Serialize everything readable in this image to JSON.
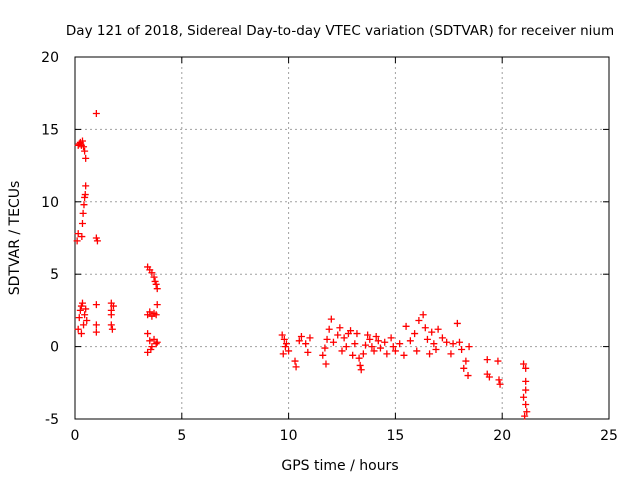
{
  "chart_data": {
    "type": "scatter",
    "title": "Day 121 of 2018, Sidereal Day-to-day VTEC variation (SDTVAR) for receiver nium",
    "xlabel": "GPS time / hours",
    "ylabel": "SDTVAR / TECUs",
    "xlim": [
      0,
      25
    ],
    "ylim": [
      -5,
      20
    ],
    "xticks": [
      "0",
      "5",
      "10",
      "15",
      "20",
      "25"
    ],
    "yticks": [
      "-5",
      "0",
      "5",
      "10",
      "15",
      "20"
    ],
    "grid": true,
    "marker": "+",
    "color": "#ff0000",
    "series": [
      {
        "name": "SDTVAR",
        "points": [
          [
            0.1,
            7.3
          ],
          [
            0.15,
            7.8
          ],
          [
            0.15,
            13.9
          ],
          [
            0.2,
            14.0
          ],
          [
            0.25,
            14.1
          ],
          [
            0.3,
            13.9
          ],
          [
            0.35,
            14.2
          ],
          [
            0.4,
            13.8
          ],
          [
            0.45,
            13.5
          ],
          [
            0.5,
            13.0
          ],
          [
            0.2,
            2.0
          ],
          [
            0.25,
            2.5
          ],
          [
            0.3,
            2.8
          ],
          [
            0.35,
            3.0
          ],
          [
            0.4,
            1.5
          ],
          [
            0.45,
            2.2
          ],
          [
            0.3,
            0.9
          ],
          [
            0.5,
            2.6
          ],
          [
            0.55,
            1.8
          ],
          [
            0.15,
            1.2
          ],
          [
            0.35,
            8.5
          ],
          [
            0.38,
            9.2
          ],
          [
            0.42,
            9.8
          ],
          [
            0.45,
            10.3
          ],
          [
            0.48,
            10.5
          ],
          [
            0.5,
            11.1
          ],
          [
            0.32,
            7.6
          ],
          [
            1.0,
            16.1
          ],
          [
            1.0,
            7.5
          ],
          [
            1.05,
            7.3
          ],
          [
            1.0,
            2.9
          ],
          [
            1.0,
            1.5
          ],
          [
            1.0,
            1.0
          ],
          [
            1.7,
            3.0
          ],
          [
            1.7,
            2.5
          ],
          [
            1.7,
            2.2
          ],
          [
            1.7,
            1.5
          ],
          [
            1.75,
            1.2
          ],
          [
            1.8,
            2.8
          ],
          [
            3.4,
            5.5
          ],
          [
            3.5,
            5.3
          ],
          [
            3.6,
            5.1
          ],
          [
            3.7,
            4.8
          ],
          [
            3.8,
            4.3
          ],
          [
            3.85,
            4.0
          ],
          [
            3.75,
            4.5
          ],
          [
            3.4,
            2.2
          ],
          [
            3.5,
            2.4
          ],
          [
            3.6,
            2.1
          ],
          [
            3.7,
            2.3
          ],
          [
            3.8,
            2.2
          ],
          [
            3.85,
            2.9
          ],
          [
            3.4,
            0.9
          ],
          [
            3.5,
            0.4
          ],
          [
            3.6,
            0.0
          ],
          [
            3.7,
            0.5
          ],
          [
            3.8,
            0.2
          ],
          [
            3.4,
            -0.4
          ],
          [
            3.55,
            -0.2
          ],
          [
            3.85,
            0.3
          ],
          [
            9.7,
            0.8
          ],
          [
            9.8,
            0.5
          ],
          [
            9.9,
            0.2
          ],
          [
            10.0,
            -0.3
          ],
          [
            9.75,
            -0.5
          ],
          [
            9.85,
            0.0
          ],
          [
            10.3,
            -1.0
          ],
          [
            10.35,
            -1.4
          ],
          [
            10.5,
            0.4
          ],
          [
            10.6,
            0.7
          ],
          [
            10.8,
            0.2
          ],
          [
            11.0,
            0.6
          ],
          [
            10.9,
            -0.4
          ],
          [
            11.6,
            -0.6
          ],
          [
            11.7,
            -0.1
          ],
          [
            11.8,
            0.5
          ],
          [
            11.9,
            1.2
          ],
          [
            12.0,
            1.9
          ],
          [
            11.75,
            -1.2
          ],
          [
            12.1,
            0.3
          ],
          [
            12.3,
            0.8
          ],
          [
            12.4,
            1.3
          ],
          [
            12.5,
            -0.3
          ],
          [
            12.6,
            0.6
          ],
          [
            12.7,
            0.0
          ],
          [
            12.8,
            0.9
          ],
          [
            12.9,
            1.1
          ],
          [
            13.0,
            -0.6
          ],
          [
            13.1,
            0.2
          ],
          [
            13.2,
            0.9
          ],
          [
            13.3,
            -0.8
          ],
          [
            13.35,
            -1.3
          ],
          [
            13.4,
            -1.6
          ],
          [
            13.5,
            -0.5
          ],
          [
            13.6,
            0.1
          ],
          [
            13.7,
            0.8
          ],
          [
            13.8,
            0.5
          ],
          [
            13.9,
            0.0
          ],
          [
            14.0,
            -0.3
          ],
          [
            14.1,
            0.7
          ],
          [
            14.2,
            0.4
          ],
          [
            14.3,
            -0.1
          ],
          [
            14.5,
            0.3
          ],
          [
            14.6,
            -0.5
          ],
          [
            14.8,
            0.6
          ],
          [
            14.9,
            0.0
          ],
          [
            15.0,
            -0.3
          ],
          [
            15.2,
            0.2
          ],
          [
            15.4,
            -0.6
          ],
          [
            15.5,
            1.4
          ],
          [
            15.7,
            0.4
          ],
          [
            15.9,
            0.9
          ],
          [
            16.0,
            -0.3
          ],
          [
            16.1,
            1.8
          ],
          [
            16.3,
            2.2
          ],
          [
            16.4,
            1.3
          ],
          [
            16.5,
            0.5
          ],
          [
            16.6,
            -0.5
          ],
          [
            16.7,
            1.0
          ],
          [
            16.8,
            0.2
          ],
          [
            16.9,
            -0.2
          ],
          [
            17.0,
            1.2
          ],
          [
            17.2,
            0.6
          ],
          [
            17.4,
            0.3
          ],
          [
            17.6,
            -0.5
          ],
          [
            17.7,
            0.2
          ],
          [
            17.9,
            1.6
          ],
          [
            18.0,
            0.3
          ],
          [
            18.1,
            -0.2
          ],
          [
            18.2,
            -1.5
          ],
          [
            18.3,
            -1.0
          ],
          [
            18.4,
            -2.0
          ],
          [
            18.45,
            0.0
          ],
          [
            19.3,
            -0.9
          ],
          [
            19.3,
            -1.9
          ],
          [
            19.4,
            -2.1
          ],
          [
            19.8,
            -1.0
          ],
          [
            19.85,
            -2.3
          ],
          [
            19.9,
            -2.6
          ],
          [
            21.0,
            -1.2
          ],
          [
            21.1,
            -1.5
          ],
          [
            21.1,
            -2.4
          ],
          [
            21.1,
            -3.0
          ],
          [
            21.0,
            -3.5
          ],
          [
            21.1,
            -4.0
          ],
          [
            21.15,
            -4.5
          ],
          [
            21.05,
            -4.8
          ]
        ]
      }
    ]
  }
}
